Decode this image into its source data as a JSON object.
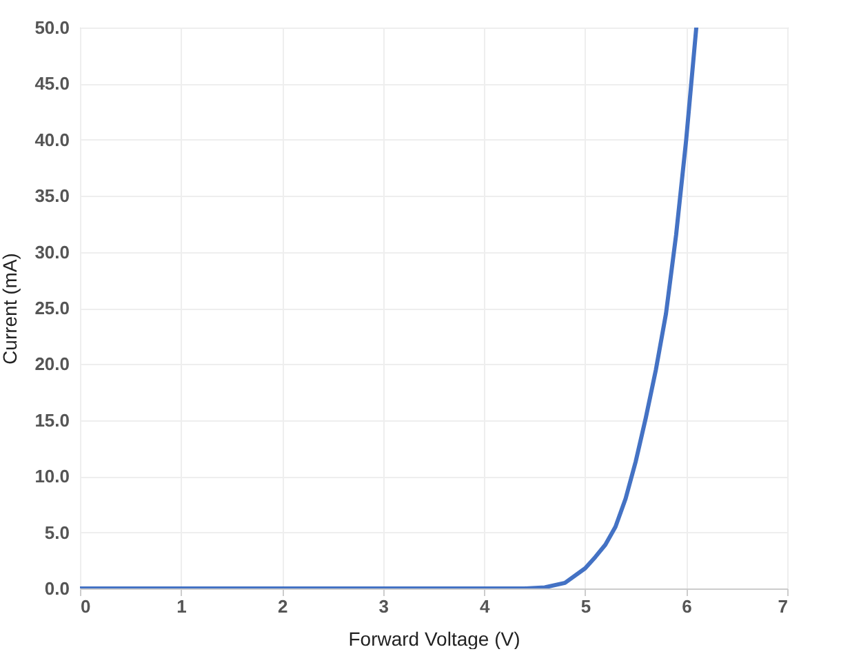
{
  "chart_data": {
    "type": "line",
    "xlabel": "Forward Voltage (V)",
    "ylabel": "Current (mA)",
    "x": [
      0,
      1,
      2,
      3,
      4,
      4.4,
      4.6,
      4.8,
      5.0,
      5.1,
      5.2,
      5.3,
      5.4,
      5.5,
      5.6,
      5.7,
      5.8,
      5.9,
      6.0,
      6.1
    ],
    "series": [
      {
        "color": "#4472c4",
        "values": [
          0,
          0,
          0,
          0,
          0,
          0,
          0.1,
          0.5,
          1.8,
          2.8,
          3.9,
          5.5,
          8.0,
          11.3,
          15.2,
          19.5,
          24.5,
          31.5,
          40.0,
          50.0
        ]
      }
    ],
    "xlim": [
      0,
      7
    ],
    "xticks": [
      0,
      1,
      2,
      3,
      4,
      5,
      6,
      7
    ],
    "ylim": [
      0,
      50
    ],
    "yticks": [
      {
        "value": 0,
        "label": "0.0"
      },
      {
        "value": 5,
        "label": "5.0"
      },
      {
        "value": 10,
        "label": "10.0"
      },
      {
        "value": 15,
        "label": "15.0"
      },
      {
        "value": 20,
        "label": "20.0"
      },
      {
        "value": 25,
        "label": "25.0"
      },
      {
        "value": 30,
        "label": "30.0"
      },
      {
        "value": 35,
        "label": "35.0"
      },
      {
        "value": 40,
        "label": "40.0"
      },
      {
        "value": 45,
        "label": "45.0"
      },
      {
        "value": 50,
        "label": "50.0"
      }
    ],
    "grid": true,
    "marker": "none",
    "line_style": "solid"
  }
}
